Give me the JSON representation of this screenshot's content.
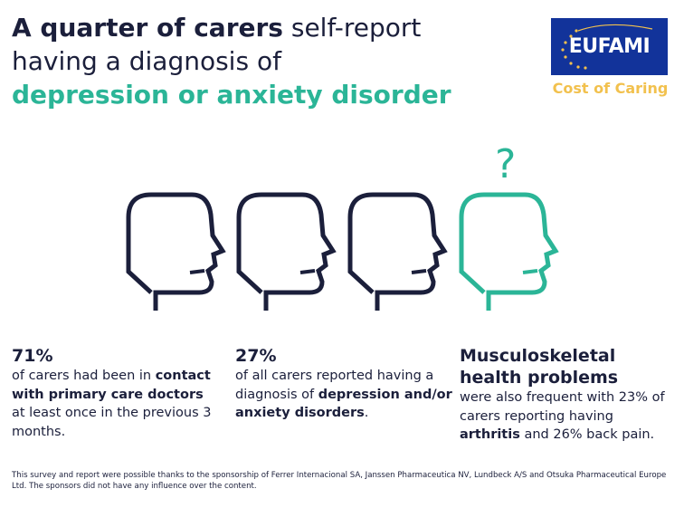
{
  "title": {
    "line1_bold": "A quarter of carers",
    "line1_rest": " self-report",
    "line2": "having a diagnosis of",
    "line3": "depression or anxiety disorder"
  },
  "logo": {
    "name": "EUFAMI",
    "tagline": "Cost of Caring"
  },
  "heads": {
    "question_mark": "?"
  },
  "stats": [
    {
      "value": "71%",
      "text1": "of carers had been in ",
      "bold": "contact with primary care doctors",
      "text2": " at least once in the previous 3 months."
    },
    {
      "value": "27%",
      "text1": "of all carers reported having a diagnosis of ",
      "bold": "depression and/or anxiety disorders",
      "text2": "."
    },
    {
      "heading": "Musculoskeletal health problems",
      "text1": "were also frequent with 23% of carers reporting having ",
      "bold": "arthritis",
      "text2": " and 26% back pain."
    }
  ],
  "footer": "This survey and report were possible thanks to the sponsorship of Ferrer Internacional SA, Janssen Pharmaceutica NV, Lundbeck A/S and Otsuka Pharmaceutical Europe Ltd. The sponsors did not have any influence over the content.",
  "colors": {
    "navy": "#1b1f3b",
    "teal": "#2bb597",
    "eu_blue": "#12339a",
    "gold": "#f2c14e"
  }
}
